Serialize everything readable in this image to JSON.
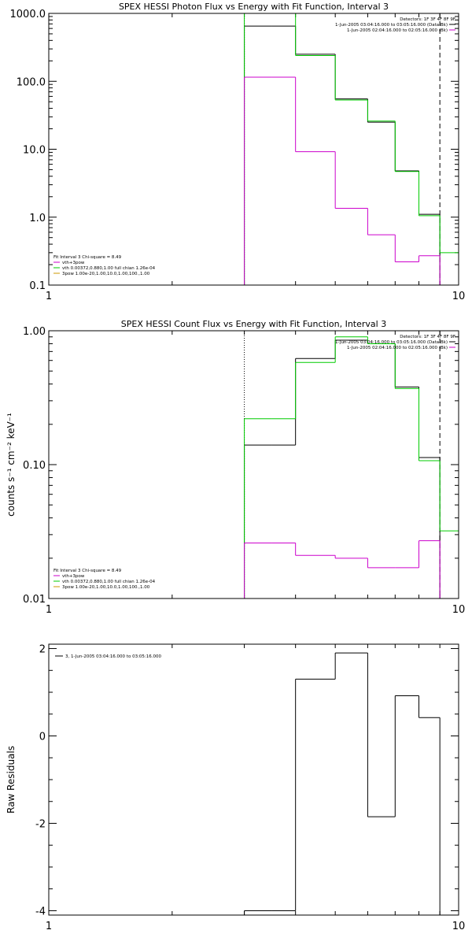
{
  "colors": {
    "data": "#000000",
    "model": "#00cc00",
    "background": "#cc00cc",
    "axis": "#000000"
  },
  "panels": [
    {
      "type": "line",
      "title": "SPEX HESSI Photon Flux vs Energy with Fit Function, Interval 3",
      "xscale": "log",
      "yscale": "log",
      "xlim": [
        1,
        10
      ],
      "ylim": [
        0.1,
        1000
      ],
      "xticks": [
        {
          "v": 1,
          "label": "1"
        },
        {
          "v": 10,
          "label": "10"
        }
      ],
      "yticks": [
        {
          "v": 1000,
          "label": "1000.0"
        },
        {
          "v": 100,
          "label": "100.0"
        },
        {
          "v": 10,
          "label": "10.0"
        },
        {
          "v": 1,
          "label": "1.0"
        },
        {
          "v": 0.1,
          "label": "0.1"
        }
      ],
      "ylabel": "",
      "edges": [
        3,
        3.5,
        4,
        5,
        6,
        7,
        8,
        9,
        10
      ],
      "series": [
        {
          "key": "data",
          "values": [
            650,
            650,
            250,
            55,
            25,
            4.8,
            1.1,
            null
          ],
          "color": "#000000"
        },
        {
          "key": "model",
          "values": [
            1000,
            1000,
            240,
            53,
            26,
            4.7,
            1.05,
            0.3
          ],
          "color": "#00cc00"
        },
        {
          "key": "background",
          "values": [
            115,
            115,
            9.2,
            1.35,
            0.55,
            0.22,
            0.27,
            null
          ],
          "color": "#cc00cc"
        }
      ],
      "dotted_x": 3,
      "dashed_x": 9,
      "legend_tr": {
        "lines": [
          {
            "text": "Detectors: 1F 3F 4F 8F 9F",
            "color": null
          },
          {
            "text": "1-Jun-2005 03:04:16.000 to 03:05:16.000 (Data-Bk)",
            "color": "#000000"
          },
          {
            "text": "1-Jun-2005 02:04:16.000 to 02:05:16.000 (Bk)",
            "color": "#cc00cc"
          }
        ]
      },
      "legend_bl": {
        "title": "Fit Interval 3   Chi-square = 8.49",
        "lines": [
          {
            "text": "vth+3pow",
            "color": "#cc00cc"
          },
          {
            "text": "vth 0.00372,0.880,1.00  full chian 1.26e-04",
            "color": "#00cc00"
          },
          {
            "text": "3pow 1.00e-20,1.00,10.0,1.00,100.,1.00",
            "color": "#cc9900"
          }
        ]
      }
    },
    {
      "type": "line",
      "title": "SPEX HESSI Count Flux vs Energy with Fit Function, Interval 3",
      "xscale": "log",
      "yscale": "log",
      "xlim": [
        1,
        10
      ],
      "ylim": [
        0.01,
        1
      ],
      "xticks": [
        {
          "v": 1,
          "label": "1"
        },
        {
          "v": 10,
          "label": "10"
        }
      ],
      "yticks": [
        {
          "v": 1,
          "label": "1.00"
        },
        {
          "v": 0.1,
          "label": "0.10"
        },
        {
          "v": 0.01,
          "label": "0.01"
        }
      ],
      "ylabel": "counts s⁻¹ cm⁻² keV⁻¹",
      "edges": [
        3,
        3.5,
        4,
        5,
        6,
        7,
        8,
        9,
        10
      ],
      "series": [
        {
          "key": "data",
          "values": [
            0.14,
            0.14,
            0.62,
            0.85,
            0.8,
            0.38,
            0.113,
            null
          ],
          "color": "#000000"
        },
        {
          "key": "model",
          "values": [
            0.22,
            0.22,
            0.58,
            0.9,
            0.8,
            0.37,
            0.107,
            0.032
          ],
          "color": "#00cc00"
        },
        {
          "key": "background",
          "values": [
            0.026,
            0.026,
            0.021,
            0.02,
            0.017,
            0.017,
            0.027,
            null
          ],
          "color": "#cc00cc"
        }
      ],
      "dotted_x": 3,
      "dashed_x": 9,
      "legend_tr": {
        "lines": [
          {
            "text": "Detectors: 1F 3F 4F 8F 9F",
            "color": null
          },
          {
            "text": "1-Jun-2005 03:04:16.000 to 03:05:16.000 (Data-Bk)",
            "color": "#000000"
          },
          {
            "text": "1-Jun-2005 02:04:16.000 to 02:05:16.000 (Bk)",
            "color": "#cc00cc"
          }
        ]
      },
      "legend_bl": {
        "title": "Fit Interval 3   Chi-square = 8.49",
        "lines": [
          {
            "text": "vth+3pow",
            "color": "#cc00cc"
          },
          {
            "text": "vth 0.00372,0.880,1.00  full chian 1.26e-04",
            "color": "#00cc00"
          },
          {
            "text": "3pow 1.00e-20,1.00,10.0,1.00,100.,1.00",
            "color": "#cc9900"
          }
        ]
      }
    },
    {
      "type": "line",
      "title": "",
      "xscale": "log",
      "yscale": "linear",
      "xlim": [
        1,
        10
      ],
      "ylim": [
        -4.1,
        2.1
      ],
      "xticks": [
        {
          "v": 1,
          "label": "1"
        },
        {
          "v": 10,
          "label": "10"
        }
      ],
      "yticks": [
        {
          "v": 2,
          "label": "2"
        },
        {
          "v": 0,
          "label": "0"
        },
        {
          "v": -2,
          "label": "-2"
        },
        {
          "v": -4,
          "label": "-4"
        }
      ],
      "ylabel": "Raw Residuals",
      "edges": [
        3,
        3.5,
        4,
        5,
        6,
        7,
        8,
        9,
        10
      ],
      "series": [
        {
          "key": "residuals",
          "values": [
            -4.0,
            -4.0,
            1.3,
            1.9,
            -1.85,
            0.92,
            0.42,
            null
          ],
          "color": "#000000"
        }
      ],
      "dotted_x": null,
      "dashed_x": null,
      "legend_tr": null,
      "legend_bl": null,
      "legend_tl": {
        "lines": [
          {
            "text": "3, 1-Jun-2005 03:04:16.000 to 03:05:16.000",
            "color": "#000000"
          }
        ]
      }
    }
  ]
}
